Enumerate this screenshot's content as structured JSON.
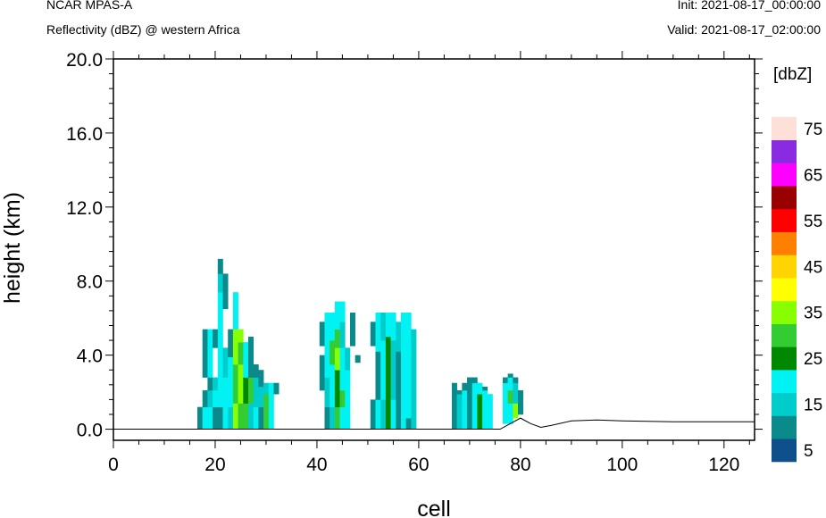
{
  "header": {
    "left_line1": "NCAR MPAS-A",
    "left_line2": "Reflectivity (dBZ) @ western Africa",
    "right_line1": "Init: 2021-08-17_00:00:00",
    "right_line2": "Valid: 2021-08-17_02:00:00"
  },
  "chart_data": {
    "type": "heatmap",
    "title": "Reflectivity (dBZ) @ western Africa",
    "xlabel": "cell",
    "ylabel": "height (km)",
    "xlim": [
      0,
      126
    ],
    "ylim": [
      -0.6,
      20.0
    ],
    "x_ticks": [
      "0",
      "20",
      "40",
      "60",
      "80",
      "100",
      "120"
    ],
    "x_tick_values": [
      0,
      20,
      40,
      60,
      80,
      100,
      120
    ],
    "y_ticks": [
      "0.0",
      "4.0",
      "8.0",
      "12.0",
      "16.0",
      "20.0"
    ],
    "y_tick_values": [
      0,
      4,
      8,
      12,
      16,
      20
    ],
    "grid": false,
    "colorbar": {
      "units": "[dbZ]",
      "label_values": [
        "5",
        "15",
        "25",
        "35",
        "45",
        "55",
        "65",
        "75"
      ],
      "bins": [
        {
          "from": 0,
          "to": 5,
          "color": "#0f4f8c"
        },
        {
          "from": 5,
          "to": 10,
          "color": "#0a8a8a"
        },
        {
          "from": 10,
          "to": 15,
          "color": "#00cccc"
        },
        {
          "from": 15,
          "to": 20,
          "color": "#00f2f2"
        },
        {
          "from": 20,
          "to": 25,
          "color": "#008800"
        },
        {
          "from": 25,
          "to": 30,
          "color": "#33cc33"
        },
        {
          "from": 30,
          "to": 35,
          "color": "#88ff00"
        },
        {
          "from": 35,
          "to": 40,
          "color": "#ffff00"
        },
        {
          "from": 40,
          "to": 45,
          "color": "#ffd400"
        },
        {
          "from": 45,
          "to": 50,
          "color": "#ff8000"
        },
        {
          "from": 50,
          "to": 55,
          "color": "#ff0000"
        },
        {
          "from": 55,
          "to": 60,
          "color": "#990000"
        },
        {
          "from": 60,
          "to": 65,
          "color": "#ff00ff"
        },
        {
          "from": 65,
          "to": 70,
          "color": "#8a2be2"
        },
        {
          "from": 70,
          "to": 75,
          "color": "#ffe0d8"
        }
      ]
    },
    "reflectivity_columns": [
      {
        "cell": 17,
        "cells": [
          [
            0.0,
            1.2,
            5
          ]
        ]
      },
      {
        "cell": 18,
        "cells": [
          [
            0.0,
            1.2,
            15
          ],
          [
            1.2,
            2.1,
            5
          ],
          [
            2.8,
            5.4,
            5
          ]
        ]
      },
      {
        "cell": 19,
        "cells": [
          [
            0.0,
            1.2,
            15
          ],
          [
            1.2,
            2.1,
            10
          ],
          [
            2.1,
            2.8,
            5
          ],
          [
            2.8,
            5.4,
            15
          ]
        ]
      },
      {
        "cell": 20,
        "cells": [
          [
            0.0,
            1.2,
            5
          ],
          [
            1.2,
            2.1,
            15
          ],
          [
            2.1,
            2.8,
            10
          ],
          [
            4.4,
            5.4,
            5
          ]
        ]
      },
      {
        "cell": 21,
        "cells": [
          [
            0.0,
            1.2,
            5
          ],
          [
            1.2,
            2.8,
            15
          ],
          [
            2.8,
            4.4,
            15
          ],
          [
            4.4,
            7.4,
            15
          ],
          [
            7.4,
            8.4,
            10
          ],
          [
            8.4,
            9.2,
            5
          ]
        ]
      },
      {
        "cell": 22,
        "cells": [
          [
            0.0,
            1.2,
            15
          ],
          [
            1.2,
            2.8,
            15
          ],
          [
            2.8,
            4.4,
            10
          ],
          [
            6.5,
            8.4,
            5
          ]
        ]
      },
      {
        "cell": 23,
        "cells": [
          [
            0.0,
            1.2,
            10
          ],
          [
            1.2,
            3.9,
            15
          ],
          [
            3.9,
            5.4,
            5
          ]
        ]
      },
      {
        "cell": 24,
        "cells": [
          [
            0.0,
            1.4,
            30
          ],
          [
            1.4,
            3.5,
            25
          ],
          [
            3.5,
            5.4,
            30
          ],
          [
            5.4,
            7.4,
            15
          ]
        ]
      },
      {
        "cell": 25,
        "cells": [
          [
            0.0,
            1.4,
            25
          ],
          [
            1.4,
            3.5,
            30
          ],
          [
            3.5,
            4.7,
            25
          ],
          [
            4.7,
            5.4,
            30
          ]
        ]
      },
      {
        "cell": 26,
        "cells": [
          [
            0.0,
            1.4,
            25
          ],
          [
            1.4,
            2.8,
            20
          ],
          [
            2.8,
            4.7,
            15
          ]
        ]
      },
      {
        "cell": 27,
        "cells": [
          [
            0.0,
            1.4,
            10
          ],
          [
            1.4,
            2.8,
            25
          ],
          [
            2.8,
            5.0,
            5
          ]
        ]
      },
      {
        "cell": 28,
        "cells": [
          [
            0.0,
            1.2,
            15
          ],
          [
            1.2,
            2.8,
            10
          ],
          [
            2.8,
            3.5,
            5
          ]
        ]
      },
      {
        "cell": 29,
        "cells": [
          [
            0.0,
            1.2,
            5
          ],
          [
            1.2,
            2.3,
            10
          ],
          [
            2.3,
            3.2,
            5
          ]
        ]
      },
      {
        "cell": 30,
        "cells": [
          [
            0.0,
            1.9,
            25
          ],
          [
            1.9,
            2.5,
            10
          ]
        ]
      },
      {
        "cell": 31,
        "cells": [
          [
            0.0,
            1.9,
            15
          ],
          [
            1.9,
            2.5,
            15
          ]
        ]
      },
      {
        "cell": 32,
        "cells": [
          [
            1.9,
            2.5,
            5
          ]
        ]
      },
      {
        "cell": 41,
        "cells": [
          [
            2.1,
            4.0,
            5
          ],
          [
            4.5,
            5.8,
            5
          ]
        ]
      },
      {
        "cell": 42,
        "cells": [
          [
            0.0,
            1.2,
            5
          ],
          [
            1.2,
            2.8,
            10
          ],
          [
            2.8,
            4.8,
            15
          ],
          [
            4.8,
            6.3,
            15
          ]
        ]
      },
      {
        "cell": 43,
        "cells": [
          [
            0.0,
            1.2,
            10
          ],
          [
            1.2,
            3.5,
            15
          ],
          [
            3.5,
            4.8,
            25
          ],
          [
            4.8,
            6.3,
            15
          ]
        ]
      },
      {
        "cell": 44,
        "cells": [
          [
            0.0,
            1.2,
            25
          ],
          [
            1.2,
            3.2,
            20
          ],
          [
            3.2,
            4.4,
            30
          ],
          [
            4.4,
            5.4,
            25
          ],
          [
            5.4,
            6.9,
            15
          ]
        ]
      },
      {
        "cell": 45,
        "cells": [
          [
            0.0,
            1.2,
            15
          ],
          [
            1.2,
            2.1,
            25
          ],
          [
            2.1,
            4.4,
            15
          ],
          [
            4.4,
            5.8,
            10
          ],
          [
            5.8,
            6.9,
            15
          ]
        ]
      },
      {
        "cell": 46,
        "cells": [
          [
            0.0,
            1.2,
            15
          ],
          [
            1.2,
            3.2,
            15
          ],
          [
            3.2,
            4.4,
            10
          ]
        ]
      },
      {
        "cell": 47,
        "cells": [
          [
            4.5,
            6.3,
            5
          ]
        ]
      },
      {
        "cell": 48,
        "cells": [
          [
            3.6,
            4.0,
            5
          ]
        ]
      },
      {
        "cell": 51,
        "cells": [
          [
            0.0,
            1.6,
            5
          ],
          [
            4.5,
            5.8,
            5
          ]
        ]
      },
      {
        "cell": 52,
        "cells": [
          [
            0.0,
            1.6,
            15
          ],
          [
            1.6,
            4.2,
            5
          ],
          [
            4.2,
            6.3,
            15
          ]
        ]
      },
      {
        "cell": 53,
        "cells": [
          [
            0.0,
            1.6,
            10
          ],
          [
            1.6,
            4.8,
            15
          ],
          [
            4.8,
            6.3,
            10
          ]
        ]
      },
      {
        "cell": 54,
        "cells": [
          [
            0.0,
            5.0,
            20
          ],
          [
            5.0,
            6.3,
            15
          ]
        ]
      },
      {
        "cell": 55,
        "cells": [
          [
            0.0,
            1.6,
            15
          ],
          [
            1.6,
            4.8,
            10
          ],
          [
            4.8,
            6.3,
            15
          ]
        ]
      },
      {
        "cell": 56,
        "cells": [
          [
            0.0,
            4.2,
            5
          ],
          [
            4.2,
            5.8,
            10
          ]
        ]
      },
      {
        "cell": 57,
        "cells": [
          [
            0.0,
            5.8,
            15
          ],
          [
            5.8,
            6.3,
            15
          ]
        ]
      },
      {
        "cell": 58,
        "cells": [
          [
            0.0,
            0.6,
            5
          ],
          [
            0.6,
            6.3,
            15
          ]
        ]
      },
      {
        "cell": 59,
        "cells": [
          [
            0.0,
            1.8,
            10
          ],
          [
            1.8,
            5.4,
            10
          ]
        ]
      },
      {
        "cell": 67,
        "cells": [
          [
            0.0,
            2.5,
            5
          ]
        ]
      },
      {
        "cell": 68,
        "cells": [
          [
            0.0,
            1.9,
            10
          ],
          [
            1.9,
            2.1,
            5
          ]
        ]
      },
      {
        "cell": 69,
        "cells": [
          [
            0.0,
            2.1,
            15
          ],
          [
            2.1,
            2.5,
            5
          ]
        ]
      },
      {
        "cell": 70,
        "cells": [
          [
            0.0,
            2.5,
            5
          ],
          [
            2.5,
            2.8,
            5
          ]
        ]
      },
      {
        "cell": 71,
        "cells": [
          [
            0.0,
            1.6,
            15
          ],
          [
            1.6,
            2.5,
            15
          ],
          [
            2.5,
            2.8,
            5
          ]
        ]
      },
      {
        "cell": 72,
        "cells": [
          [
            0.0,
            1.9,
            20
          ],
          [
            1.9,
            2.5,
            15
          ]
        ]
      },
      {
        "cell": 73,
        "cells": [
          [
            0.0,
            2.1,
            15
          ],
          [
            2.1,
            2.3,
            5
          ]
        ]
      },
      {
        "cell": 74,
        "cells": [
          [
            0.0,
            1.9,
            15
          ]
        ]
      },
      {
        "cell": 77,
        "cells": [
          [
            0.3,
            2.5,
            15
          ],
          [
            2.5,
            2.8,
            5
          ]
        ]
      },
      {
        "cell": 78,
        "cells": [
          [
            0.3,
            1.4,
            15
          ],
          [
            1.4,
            2.1,
            25
          ],
          [
            2.1,
            2.8,
            15
          ],
          [
            2.8,
            3.0,
            5
          ]
        ]
      },
      {
        "cell": 79,
        "cells": [
          [
            0.6,
            1.4,
            30
          ],
          [
            1.4,
            2.5,
            10
          ],
          [
            2.5,
            2.8,
            5
          ]
        ]
      },
      {
        "cell": 80,
        "cells": [
          [
            0.8,
            2.1,
            5
          ]
        ]
      }
    ],
    "terrain": {
      "x": [
        0,
        76,
        80,
        82,
        84,
        86,
        90,
        95,
        100,
        110,
        120,
        126
      ],
      "y": [
        0.0,
        0.0,
        0.6,
        0.3,
        0.1,
        0.2,
        0.45,
        0.5,
        0.45,
        0.4,
        0.4,
        0.4
      ]
    }
  }
}
